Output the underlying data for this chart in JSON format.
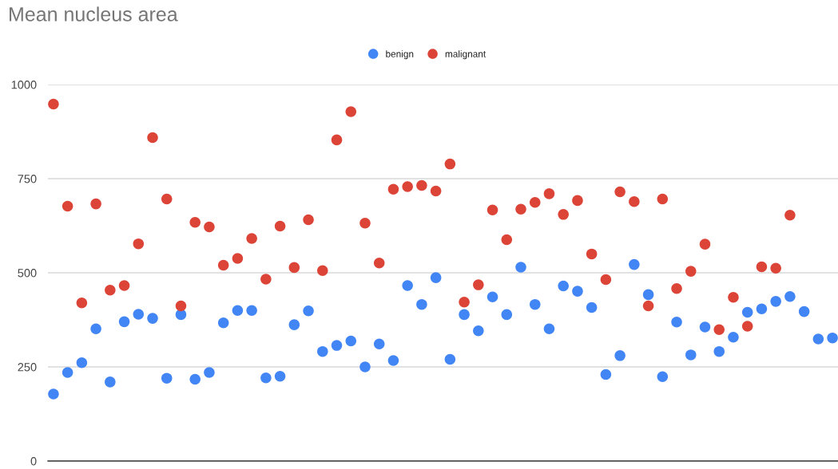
{
  "chart_data": {
    "type": "scatter",
    "title": "Mean nucleus area",
    "categories": [
      null,
      null,
      null,
      null,
      null,
      null,
      null,
      null,
      null,
      null,
      null,
      null,
      null,
      null,
      null,
      null,
      null,
      null,
      null,
      null,
      null,
      null,
      null,
      null,
      null,
      null,
      null,
      null,
      null,
      null,
      null,
      null,
      null,
      null,
      null,
      null,
      null,
      null,
      null,
      null,
      null,
      null,
      null,
      null,
      null,
      null,
      null,
      null,
      null,
      null,
      null,
      null,
      null,
      null,
      null,
      null
    ],
    "series": [
      {
        "name": "benign",
        "color": "#4285f4",
        "values": [
          178,
          235,
          261,
          351,
          210,
          370,
          390,
          379,
          220,
          389,
          217,
          235,
          367,
          400,
          400,
          221,
          225,
          362,
          399,
          291,
          307,
          319,
          250,
          311,
          267,
          466,
          416,
          487,
          270,
          389,
          346,
          436,
          389,
          515,
          416,
          351,
          465,
          451,
          408,
          230,
          280,
          522,
          442,
          224,
          369,
          282,
          356,
          291,
          329,
          395,
          404,
          424,
          437,
          397,
          324,
          327
        ]
      },
      {
        "name": "malignant",
        "color": "#db4437",
        "values": [
          948,
          677,
          420,
          683,
          454,
          466,
          577,
          859,
          696,
          412,
          634,
          622,
          520,
          538,
          591,
          483,
          624,
          514,
          641,
          506,
          853,
          928,
          632,
          526,
          722,
          729,
          732,
          717,
          789,
          422,
          468,
          667,
          588,
          669,
          687,
          710,
          655,
          692,
          550,
          482,
          715,
          689,
          412,
          696,
          458,
          504,
          576,
          349,
          435,
          358,
          516,
          512,
          653,
          null,
          null,
          null
        ]
      }
    ],
    "ylim": [
      0,
      1000
    ],
    "yticks": [
      0,
      250,
      500,
      750,
      1000
    ],
    "grid": "y",
    "legend": "top",
    "marker": "circle",
    "tick_labels": "y"
  }
}
